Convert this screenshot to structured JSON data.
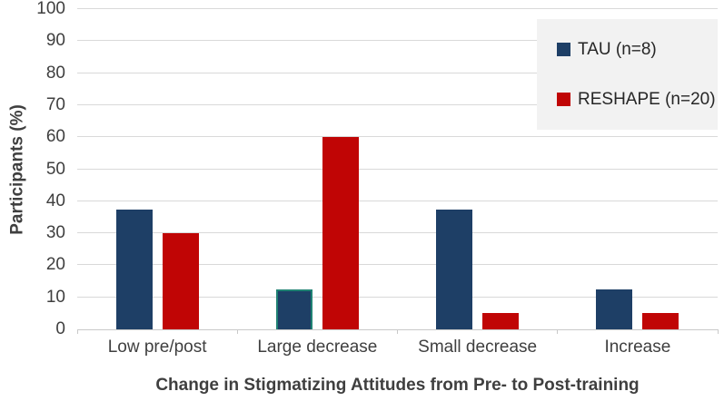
{
  "chart_data": {
    "type": "bar",
    "categories": [
      "Low pre/post",
      "Large decrease",
      "Small decrease",
      "Increase"
    ],
    "series": [
      {
        "name": "TAU (n=8)",
        "color": "#1e3f66",
        "values": [
          37.5,
          12.5,
          37.5,
          12.5
        ]
      },
      {
        "name": "RESHAPE (n=20)",
        "color": "#c00505",
        "values": [
          30,
          60,
          5,
          5
        ]
      }
    ],
    "title": "",
    "xlabel": "Change in Stigmatizing Attitudes from Pre- to Post-training",
    "ylabel": "Participants (%)",
    "ylim": [
      0,
      100
    ],
    "ytick_step": 10,
    "grid": true,
    "legend_position": "top-right",
    "highlight_border": {
      "series_index": 0,
      "category_index": 1,
      "color": "#1f8173"
    }
  },
  "colors": {
    "grid": "#d9d9d9",
    "axis": "#c9c9c9",
    "text": "#3f3f3f",
    "legend_background": "#f2f2f2"
  }
}
